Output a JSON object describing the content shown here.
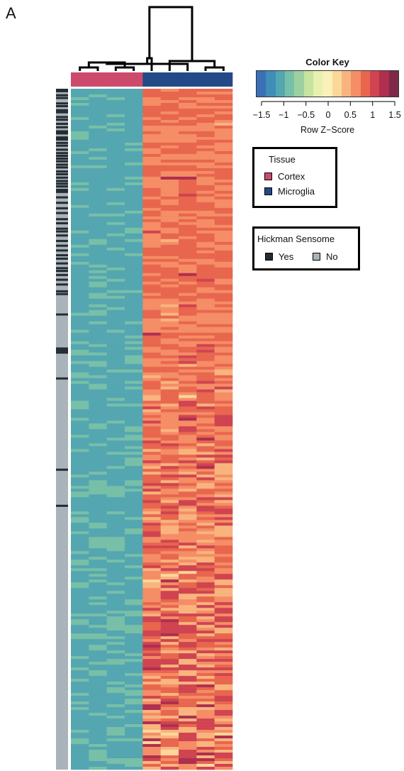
{
  "panel_label": "A",
  "colors": {
    "cortex": "#CC4B6C",
    "microglia": "#234A86",
    "sensome_yes": "#242C33",
    "sensome_no": "#A9B3B9",
    "palette": [
      "#3B6FB6",
      "#3F8DB8",
      "#54A6B1",
      "#78BFA8",
      "#9DD0A0",
      "#C6E3A0",
      "#E8F0B0",
      "#F9F1B8",
      "#FBD79A",
      "#F9B47E",
      "#F58D66",
      "#E8664E",
      "#CF4450",
      "#AE2F4E",
      "#7E2847"
    ]
  },
  "color_key": {
    "title": "Color Key",
    "axis_label": "Row Z−Score",
    "ticks": [
      {
        "value": -1.5,
        "label": "−1.5"
      },
      {
        "value": -1,
        "label": "−1"
      },
      {
        "value": -0.5,
        "label": "−0.5"
      },
      {
        "value": 0,
        "label": "0"
      },
      {
        "value": 0.5,
        "label": "0.5"
      },
      {
        "value": 1,
        "label": "1"
      },
      {
        "value": 1.5,
        "label": "1.5"
      }
    ],
    "range": [
      -1.8,
      1.8
    ]
  },
  "tissue_legend": {
    "title": "Tissue",
    "items": [
      {
        "label": "Cortex",
        "color": "#CC4B6C"
      },
      {
        "label": "Microglia",
        "color": "#234A86"
      }
    ]
  },
  "sensome_legend": {
    "title": "Hickman Sensome",
    "items": [
      {
        "label": "Yes",
        "color": "#242C33"
      },
      {
        "label": "No",
        "color": "#A9B3B9"
      }
    ]
  },
  "chart_data": {
    "type": "heatmap",
    "columns": [
      {
        "tissue": "Cortex"
      },
      {
        "tissue": "Cortex"
      },
      {
        "tissue": "Cortex"
      },
      {
        "tissue": "Cortex"
      },
      {
        "tissue": "Microglia"
      },
      {
        "tissue": "Microglia"
      },
      {
        "tissue": "Microglia"
      },
      {
        "tissue": "Microglia"
      },
      {
        "tissue": "Microglia"
      }
    ],
    "n_rows": 240,
    "cortex_z_range": [
      -1.5,
      -0.9
    ],
    "microglia_z_range": [
      0.3,
      1.5
    ],
    "sensome_yes_row_fraction": [
      0,
      0.002,
      0.008,
      0.012,
      0.02,
      0.024,
      0.03,
      0.033,
      0.04,
      0.044,
      0.05,
      0.055,
      0.061,
      0.064,
      0.07,
      0.073,
      0.078,
      0.082,
      0.088,
      0.093,
      0.097,
      0.101,
      0.105,
      0.11,
      0.114,
      0.12,
      0.124,
      0.129,
      0.134,
      0.138,
      0.142,
      0.147,
      0.15,
      0.158,
      0.166,
      0.174,
      0.181,
      0.19,
      0.196,
      0.204,
      0.208,
      0.214,
      0.222,
      0.229,
      0.236,
      0.243,
      0.248,
      0.255,
      0.262,
      0.266,
      0.272,
      0.279,
      0.286,
      0.296,
      0.3,
      0.33,
      0.38,
      0.383,
      0.386,
      0.424,
      0.558,
      0.611
    ],
    "dendrogram": {
      "columns": {
        "merge": [
          [
            -1,
            -2
          ],
          [
            -3,
            -4
          ],
          [
            1,
            2
          ],
          [
            -8,
            -9
          ],
          [
            -7,
            3
          ],
          [
            -6,
            4
          ],
          [
            -5,
            5
          ],
          [
            6,
            7
          ]
        ]
      }
    }
  }
}
